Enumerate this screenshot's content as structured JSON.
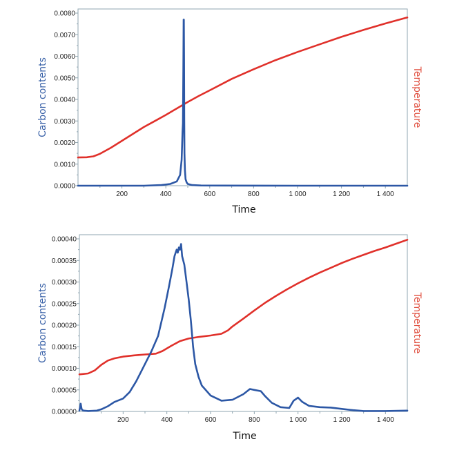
{
  "colors": {
    "carbon": "#2c57a5",
    "temperature": "#e0302a",
    "axis": "#8fa5b0",
    "ylabel": "#3a62a8",
    "y2label": "#e05040"
  },
  "chart_data": [
    {
      "type": "line",
      "title": "",
      "xlabel": "Time",
      "ylabel": "Carbon contents",
      "y2label": "Temperature",
      "xlim": [
        0,
        1500
      ],
      "ylim": [
        0,
        0.008
      ],
      "xticks": [
        200,
        400,
        600,
        800,
        1000,
        1200,
        1400
      ],
      "xtick_labels": [
        "200",
        "400",
        "600",
        "800",
        "1 000",
        "1 200",
        "1 400"
      ],
      "yticks": [
        0,
        0.001,
        0.002,
        0.003,
        0.004,
        0.005,
        0.006,
        0.007,
        0.008
      ],
      "ytick_labels": [
        "0.0000",
        "0.0010",
        "0.0020",
        "0.0030",
        "0.0040",
        "0.0050",
        "0.0060",
        "0.0070",
        "0.0080"
      ],
      "grid": false,
      "series": [
        {
          "name": "Carbon contents",
          "axis": "left",
          "x": [
            0,
            300,
            380,
            420,
            450,
            465,
            472,
            476,
            478,
            480,
            481,
            482,
            483,
            484,
            485,
            487,
            490,
            495,
            500,
            520,
            560,
            650,
            1000,
            1500
          ],
          "y": [
            0,
            0,
            3e-05,
            8e-05,
            0.0002,
            0.0005,
            0.0012,
            0.0025,
            0.0029,
            0.0055,
            0.0077,
            0.0077,
            0.006,
            0.003,
            0.0015,
            0.0007,
            0.0003,
            0.00015,
            8e-05,
            3e-05,
            1e-05,
            5e-06,
            0,
            0
          ]
        },
        {
          "name": "Temperature",
          "axis": "right",
          "x": [
            0,
            40,
            70,
            100,
            150,
            200,
            250,
            300,
            350,
            400,
            450,
            500,
            550,
            600,
            700,
            800,
            900,
            1000,
            1100,
            1200,
            1300,
            1400,
            1500
          ],
          "y": [
            0.00131,
            0.00132,
            0.00136,
            0.00148,
            0.00176,
            0.00208,
            0.0024,
            0.00272,
            0.003,
            0.00328,
            0.00358,
            0.00388,
            0.00416,
            0.00442,
            0.00495,
            0.0054,
            0.00582,
            0.0062,
            0.00655,
            0.0069,
            0.00722,
            0.00752,
            0.0078
          ]
        }
      ]
    },
    {
      "type": "line",
      "title": "",
      "xlabel": "Time",
      "ylabel": "Carbon contents",
      "y2label": "Temperature",
      "xlim": [
        0,
        1500
      ],
      "ylim": [
        0,
        0.0004
      ],
      "xticks": [
        200,
        400,
        600,
        800,
        1000,
        1200,
        1400
      ],
      "xtick_labels": [
        "200",
        "400",
        "600",
        "800",
        "1 000",
        "1 200",
        "1 400"
      ],
      "yticks": [
        0,
        5e-05,
        0.0001,
        0.00015,
        0.0002,
        0.00025,
        0.0003,
        0.00035,
        0.0004
      ],
      "ytick_labels": [
        "0.00000",
        "0.00005",
        "0.00010",
        "0.00015",
        "0.00020",
        "0.00025",
        "0.00030",
        "0.00035",
        "0.00040"
      ],
      "grid": false,
      "series": [
        {
          "name": "Carbon contents",
          "axis": "left",
          "x": [
            0,
            6,
            10,
            14,
            20,
            40,
            80,
            100,
            130,
            160,
            200,
            230,
            260,
            300,
            330,
            360,
            390,
            410,
            425,
            435,
            445,
            450,
            455,
            460,
            465,
            470,
            475,
            480,
            490,
            500,
            510,
            520,
            530,
            545,
            560,
            600,
            650,
            700,
            750,
            780,
            800,
            830,
            850,
            880,
            920,
            960,
            980,
            1000,
            1020,
            1050,
            1100,
            1150,
            1200,
            1250,
            1300,
            1400,
            1500
          ],
          "y": [
            2e-06,
            1.8e-05,
            6e-06,
            3e-06,
            2e-06,
            1e-06,
            2e-06,
            5e-06,
            1.2e-05,
            2.2e-05,
            3e-05,
            4.5e-05,
            7e-05,
            0.00011,
            0.00014,
            0.000175,
            0.00024,
            0.00029,
            0.00033,
            0.00036,
            0.000375,
            0.000368,
            0.00038,
            0.000375,
            0.000388,
            0.00036,
            0.00035,
            0.00034,
            0.0003,
            0.00026,
            0.00021,
            0.00015,
            0.00011,
            8e-05,
            6e-05,
            3.7e-05,
            2.5e-05,
            2.7e-05,
            4e-05,
            5.2e-05,
            5e-05,
            4.7e-05,
            3.5e-05,
            2e-05,
            1e-05,
            8e-06,
            2.5e-05,
            3.2e-05,
            2.2e-05,
            1.3e-05,
            1e-05,
            9e-06,
            6e-06,
            3e-06,
            1e-06,
            1e-06,
            2e-06
          ]
        },
        {
          "name": "Temperature",
          "axis": "right",
          "x": [
            0,
            40,
            70,
            100,
            130,
            160,
            200,
            250,
            300,
            350,
            380,
            420,
            460,
            500,
            550,
            600,
            650,
            680,
            700,
            750,
            800,
            850,
            900,
            950,
            1000,
            1050,
            1100,
            1150,
            1200,
            1250,
            1300,
            1350,
            1400,
            1450,
            1500
          ],
          "y": [
            8.6e-05,
            8.8e-05,
            9.5e-05,
            0.000108,
            0.000118,
            0.000123,
            0.000127,
            0.00013,
            0.000132,
            0.000134,
            0.00014,
            0.000152,
            0.000163,
            0.000169,
            0.000173,
            0.000176,
            0.00018,
            0.000188,
            0.000197,
            0.000215,
            0.000234,
            0.000252,
            0.000268,
            0.000283,
            0.000297,
            0.00031,
            0.000322,
            0.000333,
            0.000344,
            0.000354,
            0.000363,
            0.000372,
            0.00038,
            0.000389,
            0.000398
          ]
        }
      ]
    }
  ]
}
